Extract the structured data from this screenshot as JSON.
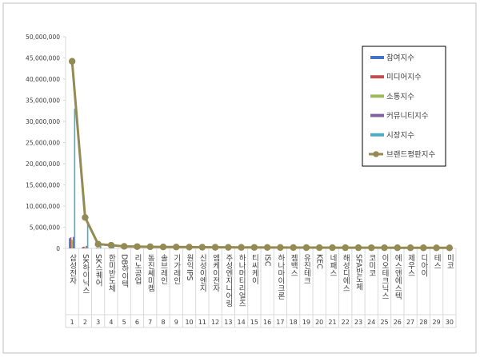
{
  "chart_data": {
    "type": "bar",
    "title": "",
    "xlabel": "",
    "ylabel": "",
    "ylim": [
      0,
      50000000
    ],
    "y_ticks": [
      "0",
      "5,000,000",
      "10,000,000",
      "15,000,000",
      "20,000,000",
      "25,000,000",
      "30,000,000",
      "35,000,000",
      "40,000,000",
      "45,000,000",
      "50,000,000"
    ],
    "y_tick_values": [
      0,
      5000000,
      10000000,
      15000000,
      20000000,
      25000000,
      30000000,
      35000000,
      40000000,
      45000000,
      50000000
    ],
    "grid": false,
    "legend_position": "right",
    "categories": [
      "삼성전자",
      "SK하이닉스",
      "SK스퀘어",
      "한미반도체",
      "DB하이텍",
      "리노공업",
      "동진쎄미켐",
      "솔브레인",
      "기가레인",
      "원익IPS",
      "신성이엔지",
      "엠케이전자",
      "주성엔지니어링",
      "하나머티리얼즈",
      "티씨케이",
      "ISC",
      "하나마이크론",
      "젬백스",
      "유진테크",
      "KEC",
      "네패스",
      "해성디에스",
      "SFA반도체",
      "코미코",
      "이오테크닉스",
      "에스앤에스텍",
      "제우스",
      "디아이",
      "테스",
      "미코"
    ],
    "ranks": [
      "1",
      "2",
      "3",
      "4",
      "5",
      "6",
      "7",
      "8",
      "9",
      "10",
      "11",
      "12",
      "13",
      "14",
      "15",
      "16",
      "17",
      "18",
      "19",
      "20",
      "21",
      "22",
      "23",
      "24",
      "25",
      "26",
      "27",
      "28",
      "29",
      "30"
    ],
    "series": [
      {
        "name": "참여지수",
        "type": "bar",
        "color": "#4472c4",
        "values": [
          2400000,
          300000,
          30000,
          25000,
          20000,
          18000,
          15000,
          15000,
          12000,
          12000,
          10000,
          10000,
          10000,
          9000,
          9000,
          8000,
          8000,
          8000,
          7000,
          7000,
          7000,
          6000,
          6000,
          6000,
          6000,
          5000,
          5000,
          5000,
          5000,
          5000
        ]
      },
      {
        "name": "미디어지수",
        "type": "bar",
        "color": "#c0504d",
        "values": [
          2600000,
          400000,
          150000,
          90000,
          60000,
          50000,
          50000,
          45000,
          40000,
          40000,
          35000,
          35000,
          30000,
          30000,
          30000,
          25000,
          25000,
          25000,
          25000,
          20000,
          20000,
          20000,
          20000,
          20000,
          20000,
          15000,
          15000,
          15000,
          15000,
          15000
        ]
      },
      {
        "name": "소통지수",
        "type": "bar",
        "color": "#9bbb59",
        "values": [
          2000000,
          250000,
          60000,
          40000,
          30000,
          25000,
          25000,
          20000,
          20000,
          20000,
          15000,
          15000,
          15000,
          15000,
          15000,
          12000,
          12000,
          12000,
          12000,
          10000,
          10000,
          10000,
          10000,
          10000,
          10000,
          8000,
          8000,
          8000,
          8000,
          8000
        ]
      },
      {
        "name": "커뮤니티지수",
        "type": "bar",
        "color": "#8064a2",
        "values": [
          2700000,
          600000,
          120000,
          80000,
          50000,
          45000,
          40000,
          35000,
          35000,
          30000,
          30000,
          25000,
          25000,
          25000,
          20000,
          20000,
          20000,
          20000,
          15000,
          15000,
          15000,
          15000,
          15000,
          12000,
          12000,
          12000,
          12000,
          10000,
          10000,
          10000
        ]
      },
      {
        "name": "시장지수",
        "type": "bar",
        "color": "#4bacc6",
        "values": [
          33000000,
          5600000,
          600000,
          500000,
          250000,
          230000,
          200000,
          180000,
          170000,
          160000,
          150000,
          140000,
          140000,
          130000,
          120000,
          120000,
          110000,
          110000,
          100000,
          100000,
          100000,
          90000,
          90000,
          90000,
          85000,
          85000,
          80000,
          80000,
          75000,
          75000
        ]
      },
      {
        "name": "브랜드평판지수",
        "type": "line",
        "color": "#948a54",
        "values": [
          44200000,
          7300000,
          1000000,
          750000,
          480000,
          420000,
          380000,
          340000,
          320000,
          300000,
          280000,
          260000,
          250000,
          240000,
          230000,
          220000,
          210000,
          200000,
          190000,
          180000,
          175000,
          170000,
          165000,
          160000,
          155000,
          150000,
          145000,
          140000,
          135000,
          130000
        ]
      }
    ]
  }
}
